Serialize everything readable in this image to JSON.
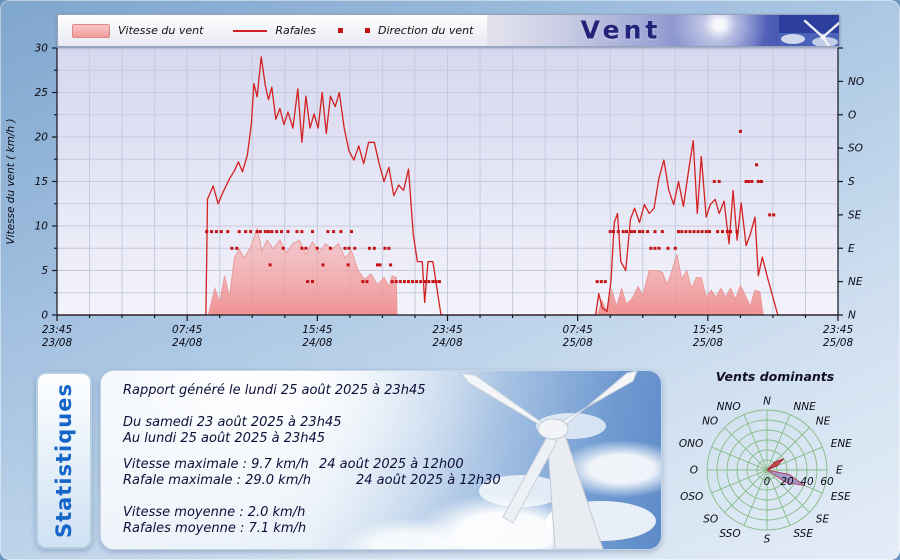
{
  "header": {
    "title": "Vent",
    "legend": [
      {
        "label": "Vitesse du vent"
      },
      {
        "label": "Rafales"
      },
      {
        "label": "Direction du vent"
      }
    ]
  },
  "colors": {
    "gust_line": "#d42020",
    "speed_fill_top": "#f8b4b4",
    "speed_fill_bottom": "#ef8888",
    "direction_dot": "#c41111",
    "rose_grid": "#85bd85",
    "rose_lobe_violet": "#a18cc8",
    "rose_lobe_red": "#c83040"
  },
  "chart_data": {
    "type": "line+area+scatter",
    "title": "Vent",
    "ylabel": "Vitesse du vent ( km/h )",
    "ylim": [
      0,
      30
    ],
    "y_ticks": [
      0,
      5,
      10,
      15,
      20,
      25,
      30
    ],
    "x_hours_total": 48,
    "x_ticks": [
      {
        "t": 0,
        "time": "23:45",
        "date": "23/08"
      },
      {
        "t": 8,
        "time": "07:45",
        "date": "24/08"
      },
      {
        "t": 16,
        "time": "15:45",
        "date": "24/08"
      },
      {
        "t": 24,
        "time": "23:45",
        "date": "24/08"
      },
      {
        "t": 32,
        "time": "07:45",
        "date": "25/08"
      },
      {
        "t": 40,
        "time": "15:45",
        "date": "25/08"
      },
      {
        "t": 48,
        "time": "23:45",
        "date": "25/08"
      }
    ],
    "right_axis_labels": [
      {
        "v": 0,
        "label": "N"
      },
      {
        "v": 3.75,
        "label": "NE"
      },
      {
        "v": 7.5,
        "label": "E"
      },
      {
        "v": 11.25,
        "label": "SE"
      },
      {
        "v": 15,
        "label": "S"
      },
      {
        "v": 18.75,
        "label": "SO"
      },
      {
        "v": 22.5,
        "label": "O"
      },
      {
        "v": 26.25,
        "label": "NO"
      }
    ],
    "series": {
      "rafales": {
        "name": "Rafales",
        "unit": "km/h",
        "points": [
          [
            0,
            0
          ],
          [
            9.15,
            0
          ],
          [
            9.25,
            13
          ],
          [
            9.6,
            14.5
          ],
          [
            9.9,
            12.5
          ],
          [
            10.2,
            13.8
          ],
          [
            10.6,
            15.3
          ],
          [
            10.9,
            16.2
          ],
          [
            11.15,
            17.2
          ],
          [
            11.4,
            16.1
          ],
          [
            11.7,
            18
          ],
          [
            11.95,
            21.5
          ],
          [
            12.1,
            26
          ],
          [
            12.3,
            24.5
          ],
          [
            12.55,
            29
          ],
          [
            12.8,
            25.8
          ],
          [
            13,
            24.2
          ],
          [
            13.2,
            25.6
          ],
          [
            13.45,
            22
          ],
          [
            13.7,
            23.2
          ],
          [
            13.95,
            21.4
          ],
          [
            14.2,
            22.8
          ],
          [
            14.5,
            21
          ],
          [
            14.8,
            25.4
          ],
          [
            15.05,
            19.4
          ],
          [
            15.3,
            24.6
          ],
          [
            15.55,
            21
          ],
          [
            15.8,
            22.6
          ],
          [
            16.05,
            21
          ],
          [
            16.3,
            25
          ],
          [
            16.55,
            20.4
          ],
          [
            16.8,
            24.6
          ],
          [
            17.1,
            23.4
          ],
          [
            17.35,
            25
          ],
          [
            17.65,
            21
          ],
          [
            17.95,
            18.4
          ],
          [
            18.25,
            17.4
          ],
          [
            18.55,
            19
          ],
          [
            18.85,
            17
          ],
          [
            19.15,
            19.4
          ],
          [
            19.5,
            19.4
          ],
          [
            19.8,
            17
          ],
          [
            20.1,
            15
          ],
          [
            20.4,
            16.6
          ],
          [
            20.7,
            13.4
          ],
          [
            21,
            14.6
          ],
          [
            21.3,
            14
          ],
          [
            21.6,
            16.4
          ],
          [
            21.9,
            9
          ],
          [
            22.15,
            6
          ],
          [
            22.45,
            6
          ],
          [
            22.6,
            1.4
          ],
          [
            22.8,
            6
          ],
          [
            23.1,
            6
          ],
          [
            23.35,
            3
          ],
          [
            23.6,
            0
          ],
          [
            33.1,
            0
          ],
          [
            33.3,
            2.4
          ],
          [
            33.5,
            0.8
          ],
          [
            33.8,
            0.4
          ],
          [
            34.05,
            3.8
          ],
          [
            34.25,
            10.4
          ],
          [
            34.45,
            11.4
          ],
          [
            34.65,
            6
          ],
          [
            34.95,
            5
          ],
          [
            35.25,
            10.8
          ],
          [
            35.5,
            12
          ],
          [
            35.8,
            10.4
          ],
          [
            36.1,
            12.4
          ],
          [
            36.4,
            11.4
          ],
          [
            36.7,
            12
          ],
          [
            37,
            15.4
          ],
          [
            37.3,
            17.4
          ],
          [
            37.6,
            14
          ],
          [
            37.9,
            12.4
          ],
          [
            38.2,
            15
          ],
          [
            38.5,
            12.2
          ],
          [
            38.8,
            16
          ],
          [
            39.1,
            19.6
          ],
          [
            39.35,
            11.4
          ],
          [
            39.6,
            17.8
          ],
          [
            39.9,
            11
          ],
          [
            40.15,
            12.4
          ],
          [
            40.45,
            13
          ],
          [
            40.7,
            11.4
          ],
          [
            41,
            12.8
          ],
          [
            41.3,
            8
          ],
          [
            41.55,
            14
          ],
          [
            41.8,
            8.4
          ],
          [
            42.05,
            12.6
          ],
          [
            42.35,
            7.8
          ],
          [
            42.6,
            9
          ],
          [
            42.9,
            11
          ],
          [
            43.1,
            4.4
          ],
          [
            43.35,
            6.5
          ],
          [
            43.7,
            4
          ],
          [
            44.3,
            0
          ],
          [
            48,
            0
          ]
        ]
      },
      "vitesse": {
        "name": "Vitesse du vent",
        "unit": "km/h",
        "points": [
          [
            0,
            0
          ],
          [
            9.3,
            0
          ],
          [
            9.7,
            3
          ],
          [
            10,
            1.4
          ],
          [
            10.3,
            4.4
          ],
          [
            10.6,
            2
          ],
          [
            10.9,
            6.4
          ],
          [
            11.2,
            7.4
          ],
          [
            11.5,
            6.4
          ],
          [
            11.9,
            7.6
          ],
          [
            12.3,
            9.7
          ],
          [
            12.6,
            7.2
          ],
          [
            12.9,
            8.4
          ],
          [
            13.3,
            7.4
          ],
          [
            13.7,
            8.4
          ],
          [
            14.1,
            7
          ],
          [
            14.5,
            8
          ],
          [
            14.9,
            8.4
          ],
          [
            15.3,
            6.8
          ],
          [
            15.7,
            8.2
          ],
          [
            16.1,
            7
          ],
          [
            16.5,
            8
          ],
          [
            16.9,
            7.4
          ],
          [
            17.3,
            8
          ],
          [
            17.7,
            6.4
          ],
          [
            18.1,
            7.2
          ],
          [
            18.5,
            5
          ],
          [
            18.9,
            4
          ],
          [
            19.3,
            4.6
          ],
          [
            19.7,
            3.4
          ],
          [
            20.1,
            4.2
          ],
          [
            20.4,
            3.2
          ],
          [
            20.6,
            4.4
          ],
          [
            20.85,
            4.2
          ],
          [
            20.9,
            0
          ],
          [
            33.2,
            0
          ],
          [
            33.5,
            1.6
          ],
          [
            33.8,
            0.3
          ],
          [
            34.1,
            2.8
          ],
          [
            34.4,
            1
          ],
          [
            34.7,
            3
          ],
          [
            35,
            1.2
          ],
          [
            35.4,
            2
          ],
          [
            35.7,
            3.2
          ],
          [
            36,
            2.2
          ],
          [
            36.4,
            5
          ],
          [
            36.8,
            5
          ],
          [
            37.2,
            4.8
          ],
          [
            37.5,
            3.4
          ],
          [
            37.8,
            5
          ],
          [
            38.1,
            6.8
          ],
          [
            38.4,
            4
          ],
          [
            38.7,
            5
          ],
          [
            39,
            3
          ],
          [
            39.3,
            4.2
          ],
          [
            39.6,
            4.2
          ],
          [
            39.9,
            2
          ],
          [
            40.2,
            2.8
          ],
          [
            40.5,
            2
          ],
          [
            40.8,
            3
          ],
          [
            41.1,
            2
          ],
          [
            41.4,
            3
          ],
          [
            41.7,
            1.8
          ],
          [
            42,
            3.3
          ],
          [
            42.3,
            2.2
          ],
          [
            42.6,
            1
          ],
          [
            42.9,
            2.8
          ],
          [
            43.2,
            2.6
          ],
          [
            43.4,
            0
          ],
          [
            48,
            0
          ]
        ]
      },
      "direction": {
        "name": "Direction du vent",
        "dir_step_value": 1.875,
        "points": [
          [
            9.2,
            "ESE"
          ],
          [
            9.5,
            "ESE"
          ],
          [
            9.8,
            "ESE"
          ],
          [
            10.1,
            "ESE"
          ],
          [
            10.5,
            "ESE"
          ],
          [
            11.2,
            "ESE"
          ],
          [
            11.6,
            "ESE"
          ],
          [
            11.9,
            "ESE"
          ],
          [
            12.3,
            "ESE"
          ],
          [
            12.5,
            "ESE"
          ],
          [
            12.8,
            "ESE"
          ],
          [
            13,
            "ESE"
          ],
          [
            13.2,
            "ESE"
          ],
          [
            13.5,
            "ESE"
          ],
          [
            13.8,
            "ESE"
          ],
          [
            14.2,
            "ESE"
          ],
          [
            14.75,
            "ESE"
          ],
          [
            15.05,
            "ESE"
          ],
          [
            15.7,
            "ESE"
          ],
          [
            16.65,
            "ESE"
          ],
          [
            17,
            "ESE"
          ],
          [
            17.45,
            "ESE"
          ],
          [
            18.1,
            "ESE"
          ],
          [
            10.75,
            "E"
          ],
          [
            11.05,
            "E"
          ],
          [
            13.9,
            "E"
          ],
          [
            15.05,
            "E"
          ],
          [
            15.3,
            "E"
          ],
          [
            16,
            "E"
          ],
          [
            16.8,
            "E"
          ],
          [
            17.7,
            "E"
          ],
          [
            17.95,
            "E"
          ],
          [
            18.3,
            "E"
          ],
          [
            19.2,
            "E"
          ],
          [
            19.5,
            "E"
          ],
          [
            20.15,
            "E"
          ],
          [
            20.4,
            "E"
          ],
          [
            13.1,
            "ENE"
          ],
          [
            16.35,
            "ENE"
          ],
          [
            17.9,
            "ENE"
          ],
          [
            19.7,
            "ENE"
          ],
          [
            19.85,
            "ENE"
          ],
          [
            20.5,
            "ENE"
          ],
          [
            15.4,
            "NE"
          ],
          [
            15.7,
            "NE"
          ],
          [
            18.8,
            "NE"
          ],
          [
            19.05,
            "NE"
          ],
          [
            20.6,
            "NE"
          ],
          [
            20.85,
            "NE"
          ],
          [
            21.1,
            "NE"
          ],
          [
            21.35,
            "NE"
          ],
          [
            21.6,
            "NE"
          ],
          [
            21.85,
            "NE"
          ],
          [
            22.1,
            "NE"
          ],
          [
            22.35,
            "NE"
          ],
          [
            22.6,
            "NE"
          ],
          [
            22.85,
            "NE"
          ],
          [
            23.1,
            "NE"
          ],
          [
            23.3,
            "NE"
          ],
          [
            23.5,
            "NE"
          ],
          [
            33.2,
            "NE"
          ],
          [
            33.45,
            "NE"
          ],
          [
            33.7,
            "NE"
          ],
          [
            34,
            "ESE"
          ],
          [
            34.2,
            "ESE"
          ],
          [
            34.5,
            "ESE"
          ],
          [
            34.8,
            "ESE"
          ],
          [
            35,
            "ESE"
          ],
          [
            35.3,
            "ESE"
          ],
          [
            35.5,
            "ESE"
          ],
          [
            35.8,
            "ESE"
          ],
          [
            36,
            "ESE"
          ],
          [
            36.3,
            "ESE"
          ],
          [
            36.75,
            "ESE"
          ],
          [
            37.2,
            "ESE"
          ],
          [
            38.2,
            "ESE"
          ],
          [
            38.4,
            "ESE"
          ],
          [
            38.65,
            "ESE"
          ],
          [
            38.9,
            "ESE"
          ],
          [
            39.15,
            "ESE"
          ],
          [
            39.4,
            "ESE"
          ],
          [
            39.65,
            "ESE"
          ],
          [
            39.9,
            "ESE"
          ],
          [
            40.1,
            "ESE"
          ],
          [
            40.6,
            "ESE"
          ],
          [
            40.9,
            "ESE"
          ],
          [
            41.2,
            "ESE"
          ],
          [
            41.4,
            "ESE"
          ],
          [
            41.8,
            "ESE"
          ],
          [
            36.5,
            "E"
          ],
          [
            36.75,
            "E"
          ],
          [
            37,
            "E"
          ],
          [
            37.55,
            "E"
          ],
          [
            38,
            "E"
          ],
          [
            40.4,
            "S"
          ],
          [
            40.7,
            "S"
          ],
          [
            42.35,
            "S"
          ],
          [
            42.5,
            "S"
          ],
          [
            42.7,
            "S"
          ],
          [
            43.1,
            "S"
          ],
          [
            43.3,
            "S"
          ],
          [
            43,
            "SSO"
          ],
          [
            42,
            "OSO"
          ],
          [
            43.8,
            "SE"
          ],
          [
            44.05,
            "SE"
          ]
        ]
      }
    }
  },
  "stats": {
    "label": "Statistiques",
    "generated": "Rapport généré le lundi 25 août 2025 à 23h45",
    "period_from": "Du samedi 23 août 2025 à 23h45",
    "period_to": "Au lundi 25 août 2025 à 23h45",
    "rows": [
      {
        "label": "Vitesse maximale : 9.7 km/h",
        "date": "24 août 2025 à 12h00"
      },
      {
        "label": "Rafale maximale : 29.0 km/h",
        "date": "24 août 2025 à 12h30"
      },
      {
        "label": "Vitesse moyenne : 2.0 km/h",
        "date": ""
      },
      {
        "label": "Rafales moyenne : 7.1 km/h",
        "date": ""
      }
    ]
  },
  "rose": {
    "title": "Vents dominants",
    "labels": [
      "N",
      "NNE",
      "NE",
      "ENE",
      "E",
      "ESE",
      "SE",
      "SSE",
      "S",
      "SSO",
      "SO",
      "OSO",
      "O",
      "ONO",
      "NO",
      "NNO"
    ],
    "scale_ticks": [
      0,
      20,
      40,
      60
    ],
    "max": 60,
    "ring_step": 10,
    "lobes": [
      {
        "dir": "NE",
        "azimuth_deg": 56,
        "radius": 20,
        "color": "#c83040",
        "stroke": "#a82030"
      },
      {
        "dir": "ESE",
        "azimuth_deg": 112.5,
        "radius": 41,
        "color": "#a18cc8",
        "stroke": "#b04868"
      }
    ]
  }
}
